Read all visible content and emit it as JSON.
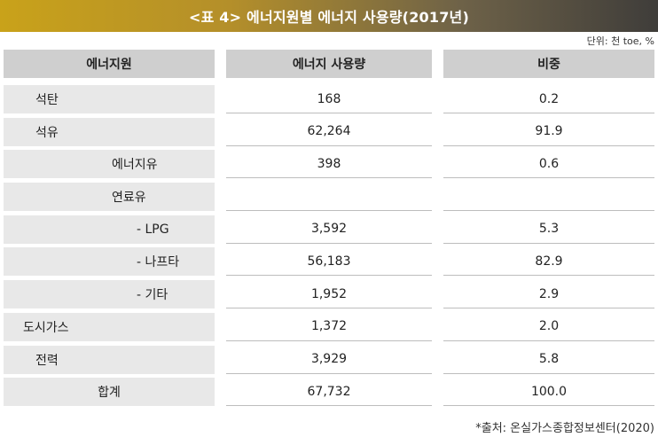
{
  "title": "<표 4> 에너지원별 에너지 사용량(2017년)",
  "unit": "단위: 천 toe, %",
  "headers": [
    "에너지원",
    "에너지 사용량",
    "비중"
  ],
  "rows": [
    {
      "name": "석탄",
      "usage": "168",
      "share": "0.2"
    },
    {
      "name": "석유",
      "usage": "62,264",
      "share": "91.9"
    },
    {
      "name": "에너지유",
      "usage": "398",
      "share": "0.6"
    },
    {
      "name": "연료유",
      "usage": "",
      "share": ""
    },
    {
      "name": "- LPG",
      "usage": "3,592",
      "share": "5.3"
    },
    {
      "name": "- 나프타",
      "usage": "56,183",
      "share": "82.9"
    },
    {
      "name": "- 기타",
      "usage": "1,952",
      "share": "2.9"
    },
    {
      "name": "도시가스",
      "usage": "1,372",
      "share": "2.0"
    },
    {
      "name": "전력",
      "usage": "3,929",
      "share": "5.8"
    },
    {
      "name": "합계",
      "usage": "67,732",
      "share": "100.0"
    }
  ],
  "source": "*출처: 온실가스종합정보센터(2020)"
}
